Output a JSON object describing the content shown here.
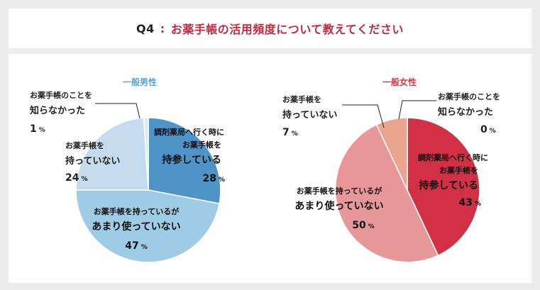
{
  "title": {
    "label": "Q4",
    "separator": ":",
    "question": "お薬手帳の活用頻度について教えてください"
  },
  "colors": {
    "title_accent": "#c8283e",
    "male_title": "#5ba3d6",
    "female_title": "#d63a4a"
  },
  "chart_data": [
    {
      "type": "pie",
      "title": "一般男性",
      "start": "12 o'clock, clockwise",
      "slices": [
        {
          "label": "調剤薬局へ行く時に お薬手帳を 持参している",
          "value": 28,
          "color": "#4f94c9"
        },
        {
          "label": "お薬手帳を持っているが あまり使っていない",
          "value": 47,
          "color": "#9ecbe6"
        },
        {
          "label": "お薬手帳を 持っていない",
          "value": 24,
          "color": "#c4dced"
        },
        {
          "label": "お薬手帳のことを 知らなかった",
          "value": 1,
          "color": "#dde9f3"
        }
      ]
    },
    {
      "type": "pie",
      "title": "一般女性",
      "start": "12 o'clock, clockwise",
      "slices": [
        {
          "label": "調剤薬局へ行く時に お薬手帳を 持参している",
          "value": 43,
          "color": "#d13045"
        },
        {
          "label": "お薬手帳を持っているが あまり使っていない",
          "value": 50,
          "color": "#e79797"
        },
        {
          "label": "お薬手帳を 持っていない",
          "value": 7,
          "color": "#e9a58e"
        },
        {
          "label": "お薬手帳のことを 知らなかった",
          "value": 0,
          "color": "#f3d4cc"
        }
      ]
    }
  ],
  "labels": {
    "male": {
      "carry": {
        "l1": "調剤薬局へ行く時に",
        "l2": "お薬手帳を",
        "l3": "持参している",
        "pct": "28"
      },
      "rarely": {
        "l1": "お薬手帳を持っているが",
        "l2": "あまり使っていない",
        "pct": "47"
      },
      "none": {
        "l1": "お薬手帳を",
        "l2": "持っていない",
        "pct": "24"
      },
      "unaware": {
        "l1": "お薬手帳のことを",
        "l2": "知らなかった",
        "pct": "1"
      }
    },
    "female": {
      "carry": {
        "l1": "調剤薬局へ行く時に",
        "l2": "お薬手帳を",
        "l3": "持参している",
        "pct": "43"
      },
      "rarely": {
        "l1": "お薬手帳を持っているが",
        "l2": "あまり使っていない",
        "pct": "50"
      },
      "none": {
        "l1": "お薬手帳を",
        "l2": "持っていない",
        "pct": "7"
      },
      "unaware": {
        "l1": "お薬手帳のことを",
        "l2": "知らなかった",
        "pct": "0"
      }
    },
    "pct_unit": "%"
  }
}
